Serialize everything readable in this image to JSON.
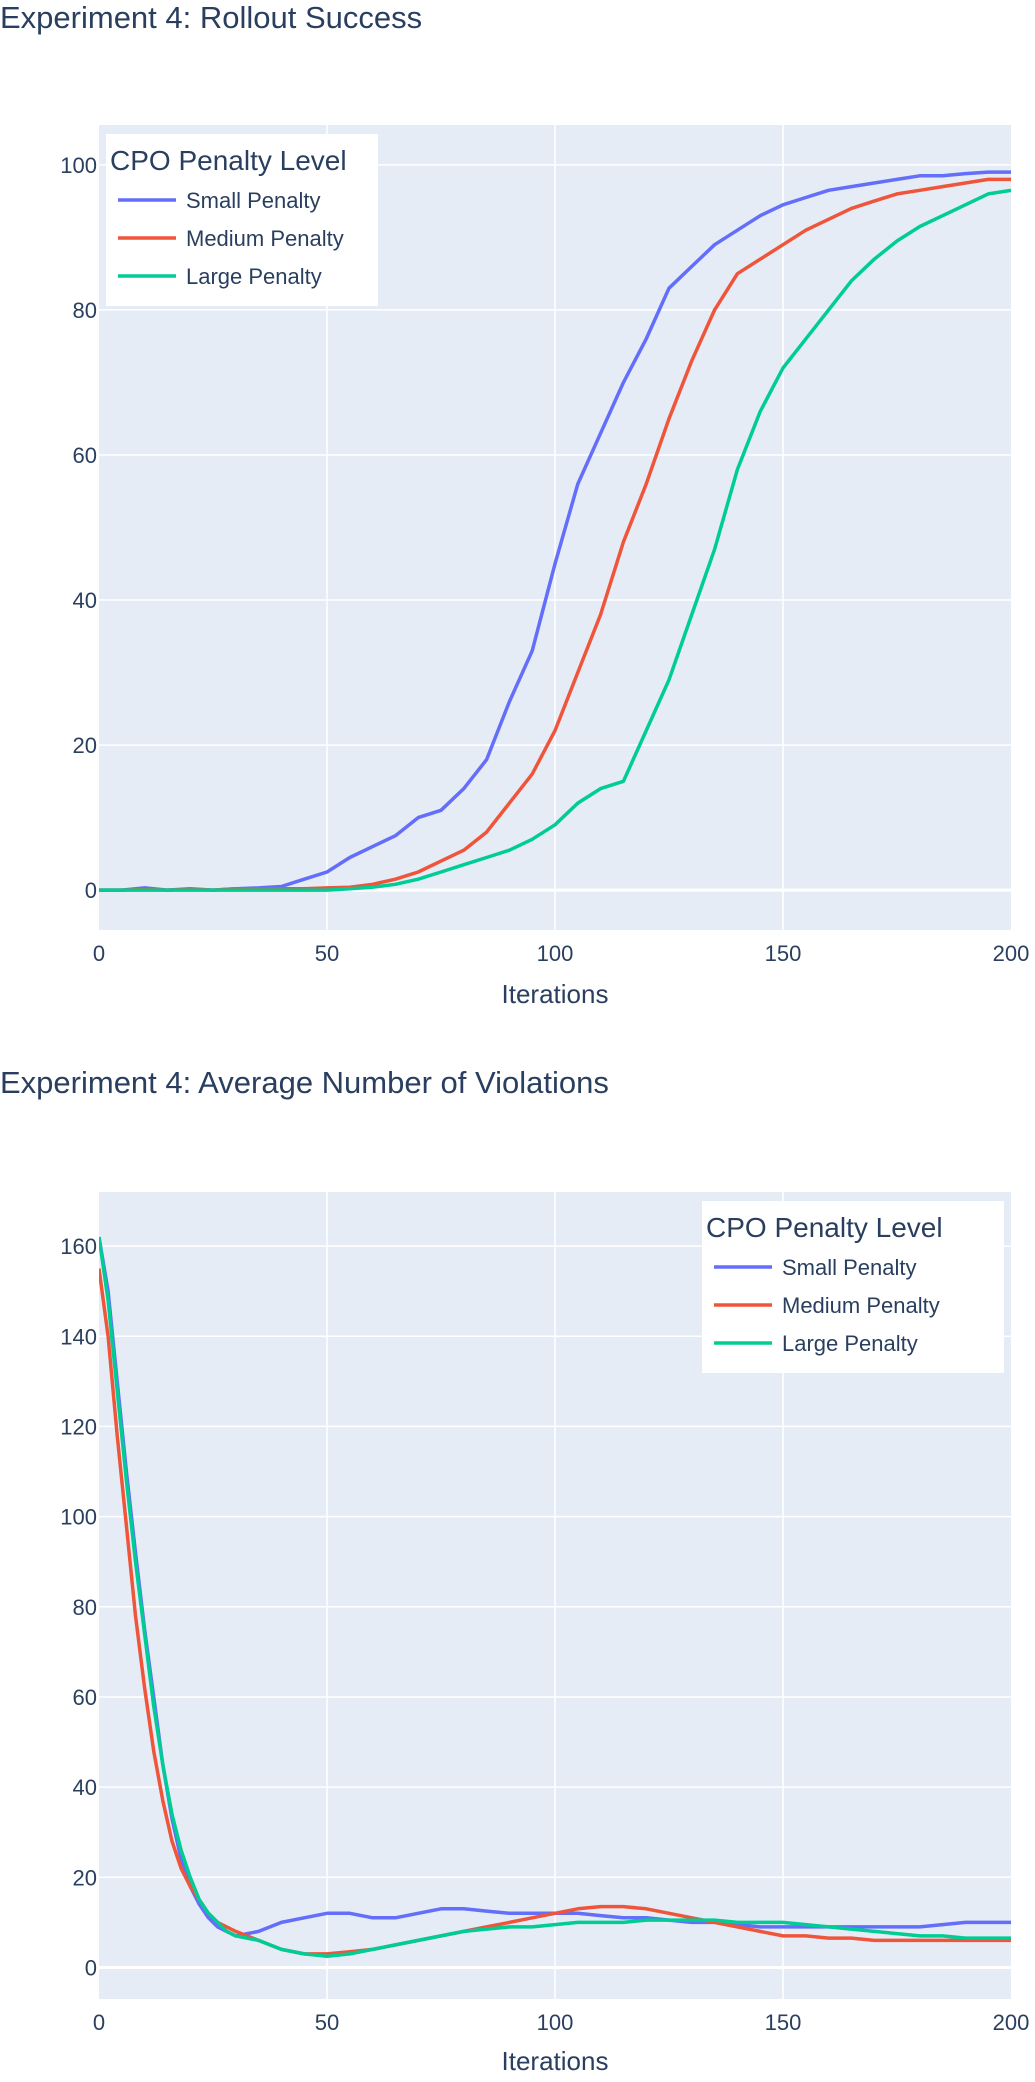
{
  "colors": {
    "plot_bg": "#e5ecf6",
    "grid": "#ffffff",
    "text": "#2a3f5f",
    "small": "#636efa",
    "medium": "#ef553b",
    "large": "#00cc96"
  },
  "chart_data": [
    {
      "type": "line",
      "title": "Experiment 4: Rollout Success",
      "xlabel": "Iterations",
      "ylabel": "",
      "xlim": [
        0,
        200
      ],
      "ylim": [
        -5.5,
        105.5
      ],
      "x_ticks": [
        0,
        50,
        100,
        150,
        200
      ],
      "y_ticks": [
        0,
        20,
        40,
        60,
        80,
        100
      ],
      "legend": {
        "title": "CPO Penalty Level",
        "position": "top-left"
      },
      "x": [
        0,
        5,
        10,
        15,
        20,
        25,
        30,
        35,
        40,
        45,
        50,
        55,
        60,
        65,
        70,
        75,
        80,
        85,
        90,
        95,
        100,
        105,
        110,
        115,
        120,
        125,
        130,
        135,
        140,
        145,
        150,
        155,
        160,
        165,
        170,
        175,
        180,
        185,
        190,
        195,
        200
      ],
      "series": [
        {
          "name": "Small Penalty",
          "color_key": "small",
          "values": [
            0,
            0,
            0.3,
            0,
            0.2,
            0,
            0.2,
            0.3,
            0.5,
            1.5,
            2.5,
            4.5,
            6,
            7.5,
            10,
            11,
            14,
            18,
            26,
            33,
            45,
            56,
            63,
            70,
            76,
            83,
            86,
            89,
            91,
            93,
            94.5,
            95.5,
            96.5,
            97,
            97.5,
            98,
            98.5,
            98.5,
            98.8,
            99,
            99
          ]
        },
        {
          "name": "Medium Penalty",
          "color_key": "medium",
          "values": [
            0,
            0,
            0.1,
            0,
            0.1,
            0,
            0.2,
            0.2,
            0.2,
            0.2,
            0.3,
            0.4,
            0.8,
            1.5,
            2.5,
            4,
            5.5,
            8,
            12,
            16,
            22,
            30,
            38,
            48,
            56,
            65,
            73,
            80,
            85,
            87,
            89,
            91,
            92.5,
            94,
            95,
            96,
            96.5,
            97,
            97.5,
            98,
            98
          ]
        },
        {
          "name": "Large Penalty",
          "color_key": "large",
          "values": [
            0,
            0,
            0,
            0,
            0,
            0,
            0,
            0,
            0,
            0,
            0,
            0.2,
            0.4,
            0.8,
            1.5,
            2.5,
            3.5,
            4.5,
            5.5,
            7,
            9,
            12,
            14,
            15,
            22,
            29,
            38,
            47,
            58,
            66,
            72,
            76,
            80,
            84,
            87,
            89.5,
            91.5,
            93,
            94.5,
            96,
            96.5
          ]
        }
      ]
    },
    {
      "type": "line",
      "title": "Experiment 4: Average Number of Violations",
      "xlabel": "Iterations",
      "ylabel": "",
      "xlim": [
        0,
        200
      ],
      "ylim": [
        -7,
        172
      ],
      "x_ticks": [
        0,
        50,
        100,
        150,
        200
      ],
      "y_ticks": [
        0,
        20,
        40,
        60,
        80,
        100,
        120,
        140,
        160
      ],
      "legend": {
        "title": "CPO Penalty Level",
        "position": "top-right"
      },
      "x": [
        0,
        2,
        4,
        6,
        8,
        10,
        12,
        14,
        16,
        18,
        20,
        22,
        24,
        26,
        28,
        30,
        35,
        40,
        45,
        50,
        55,
        60,
        65,
        70,
        75,
        80,
        85,
        90,
        95,
        100,
        105,
        110,
        115,
        120,
        125,
        130,
        135,
        140,
        145,
        150,
        155,
        160,
        165,
        170,
        175,
        180,
        185,
        190,
        195,
        200
      ],
      "series": [
        {
          "name": "Small Penalty",
          "color_key": "small",
          "values": [
            162,
            150,
            130,
            110,
            92,
            75,
            60,
            45,
            33,
            24,
            18,
            14,
            11,
            9,
            8,
            7,
            8,
            10,
            11,
            12,
            12,
            11,
            11,
            12,
            13,
            13,
            12.5,
            12,
            12,
            12,
            12,
            11.5,
            11,
            11,
            10.5,
            10,
            10,
            9.5,
            9,
            9,
            9,
            9,
            9,
            9,
            9,
            9,
            9.5,
            10,
            10,
            10
          ]
        },
        {
          "name": "Medium Penalty",
          "color_key": "medium",
          "values": [
            155,
            140,
            118,
            98,
            78,
            62,
            48,
            37,
            28,
            22,
            18,
            15,
            12,
            10,
            9,
            8,
            6,
            4,
            3,
            3,
            3.5,
            4,
            5,
            6,
            7,
            8,
            9,
            10,
            11,
            12,
            13,
            13.5,
            13.5,
            13,
            12,
            11,
            10,
            9,
            8,
            7,
            7,
            6.5,
            6.5,
            6,
            6,
            6,
            6,
            6,
            6,
            6
          ]
        },
        {
          "name": "Large Penalty",
          "color_key": "large",
          "values": [
            162,
            148,
            128,
            108,
            90,
            74,
            58,
            45,
            34,
            26,
            20,
            15,
            12,
            10,
            8,
            7,
            6,
            4,
            3,
            2.5,
            3,
            4,
            5,
            6,
            7,
            8,
            8.5,
            9,
            9,
            9.5,
            10,
            10,
            10,
            10.5,
            10.5,
            10.5,
            10.5,
            10,
            10,
            10,
            9.5,
            9,
            8.5,
            8,
            7.5,
            7,
            7,
            6.5,
            6.5,
            6.5
          ]
        }
      ]
    }
  ]
}
